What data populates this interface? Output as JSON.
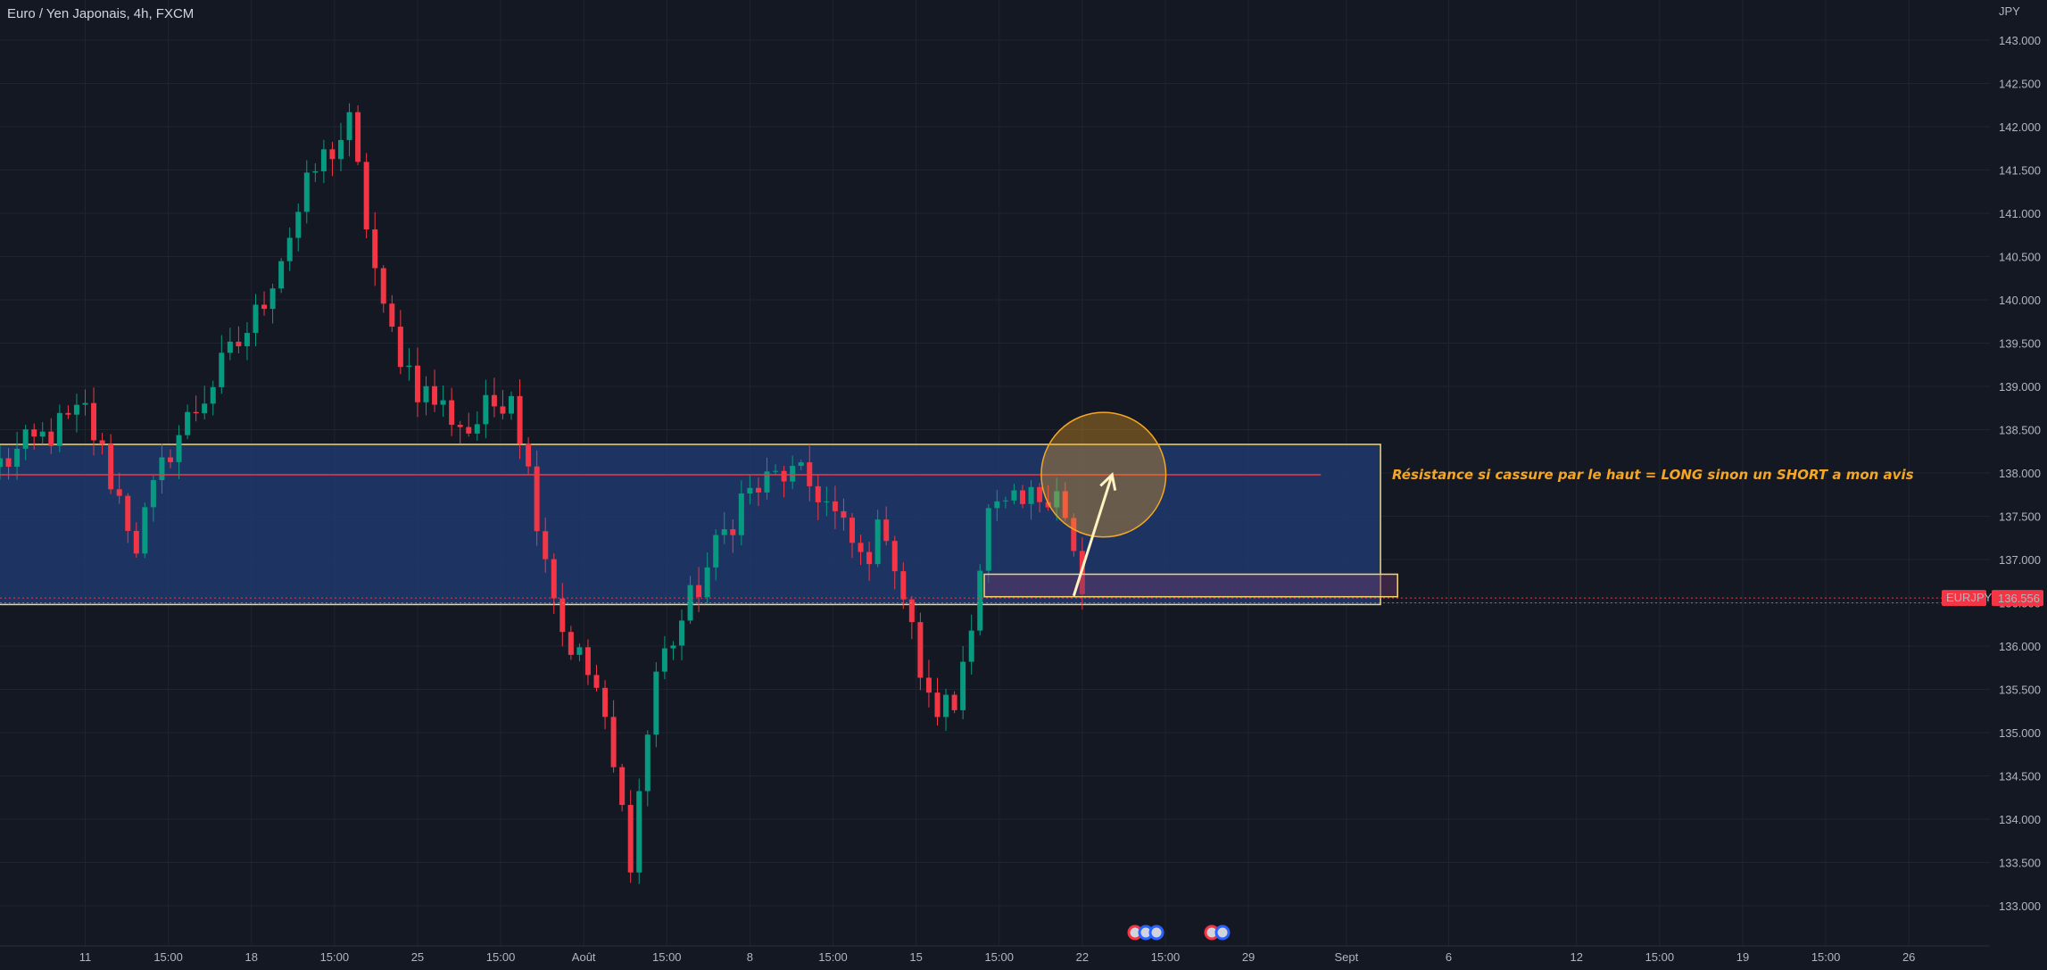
{
  "header": {
    "symbol_title": "Euro / Yen Japonais, 4h, FXCM"
  },
  "price_scale": {
    "currency": "JPY",
    "ticks": [
      "143.000",
      "142.500",
      "142.000",
      "141.500",
      "141.000",
      "140.500",
      "140.000",
      "139.500",
      "139.000",
      "138.500",
      "138.000",
      "137.500",
      "137.000",
      "136.500",
      "136.000",
      "135.500",
      "135.000",
      "134.500",
      "134.000",
      "133.500",
      "133.000"
    ]
  },
  "time_scale": {
    "ticks": [
      "11",
      "15:00",
      "18",
      "15:00",
      "25",
      "15:00",
      "Août",
      "15:00",
      "8",
      "15:00",
      "15",
      "15:00",
      "22",
      "15:00",
      "29",
      "Sept",
      "6",
      "12",
      "15:00",
      "19",
      "15:00",
      "26"
    ]
  },
  "last_price": {
    "symbol": "EURJPY",
    "value": "136.556",
    "color": "#f23645"
  },
  "annotation": {
    "text": "Résistance si cassure par le haut = LONG sinon un SHORT a mon avis",
    "color": "#f5a623"
  },
  "colors": {
    "background": "#141823",
    "up": "#089981",
    "down": "#f23645",
    "zone_fill": "#1e3a6e",
    "zone_border": "#f5d66a",
    "resistance_line": "#f23645",
    "circle": "#f5a623",
    "arrow": "#fff3c4"
  },
  "chart_data": {
    "type": "candlestick",
    "symbol": "EURJPY",
    "timeframe": "4h",
    "ylim": [
      132.7,
      143.2
    ],
    "xlim": [
      -1,
      236
    ],
    "x_ticks": [
      {
        "x": 10,
        "label": "11"
      },
      {
        "x": 19.75,
        "label": "15:00"
      },
      {
        "x": 29.5,
        "label": "18"
      },
      {
        "x": 39.25,
        "label": "15:00"
      },
      {
        "x": 49,
        "label": "25"
      },
      {
        "x": 58.75,
        "label": "15:00"
      },
      {
        "x": 68.5,
        "label": "Août"
      },
      {
        "x": 78.25,
        "label": "15:00"
      },
      {
        "x": 88,
        "label": "8"
      },
      {
        "x": 97.75,
        "label": "15:00"
      },
      {
        "x": 107.5,
        "label": "15"
      },
      {
        "x": 117.25,
        "label": "15:00"
      },
      {
        "x": 127,
        "label": "22"
      },
      {
        "x": 136.75,
        "label": "15:00"
      },
      {
        "x": 146.5,
        "label": "29"
      },
      {
        "x": 158,
        "label": "Sept"
      },
      {
        "x": 170,
        "label": "6"
      },
      {
        "x": 185,
        "label": "12"
      },
      {
        "x": 194.75,
        "label": "15:00"
      },
      {
        "x": 204.5,
        "label": "19"
      },
      {
        "x": 214.25,
        "label": "15:00"
      },
      {
        "x": 224,
        "label": "26"
      }
    ],
    "key_points": [
      {
        "x": 0,
        "close": 138.1
      },
      {
        "x": 10,
        "close": 138.7
      },
      {
        "x": 16,
        "close": 137.2
      },
      {
        "x": 20,
        "close": 138.3
      },
      {
        "x": 30,
        "close": 139.8
      },
      {
        "x": 37,
        "close": 141.5
      },
      {
        "x": 41,
        "close": 142.0
      },
      {
        "x": 45,
        "close": 139.8
      },
      {
        "x": 49,
        "close": 139.0
      },
      {
        "x": 55,
        "close": 138.5
      },
      {
        "x": 60,
        "close": 139.0
      },
      {
        "x": 62,
        "close": 138.0
      },
      {
        "x": 66,
        "close": 136.2
      },
      {
        "x": 70,
        "close": 135.5
      },
      {
        "x": 74,
        "close": 133.6
      },
      {
        "x": 77,
        "close": 135.7
      },
      {
        "x": 81,
        "close": 136.5
      },
      {
        "x": 87,
        "close": 137.7
      },
      {
        "x": 92,
        "close": 138.0
      },
      {
        "x": 96,
        "close": 137.8
      },
      {
        "x": 101,
        "close": 137.0
      },
      {
        "x": 104,
        "close": 137.4
      },
      {
        "x": 109,
        "close": 135.3
      },
      {
        "x": 112,
        "close": 135.3
      },
      {
        "x": 116,
        "close": 137.5
      },
      {
        "x": 120,
        "close": 137.6
      },
      {
        "x": 124,
        "close": 137.9
      },
      {
        "x": 127,
        "close": 136.6
      }
    ],
    "resistance_line": {
      "price": 137.98,
      "x_start": -1,
      "x_end": 155
    },
    "support_level": {
      "price": 136.53
    },
    "zones": [
      {
        "name": "range-zone",
        "x_start": -1,
        "x_end": 162,
        "y_low": 136.48,
        "y_high": 138.33
      },
      {
        "name": "support-box",
        "x_start": 115.5,
        "x_end": 164,
        "y_low": 136.57,
        "y_high": 136.83
      }
    ],
    "circle": {
      "x": 129.5,
      "price": 137.98,
      "radius_price": 0.72
    },
    "arrow": {
      "from": {
        "x": 126,
        "price": 136.58
      },
      "to": {
        "x": 130.5,
        "price": 137.98
      }
    }
  }
}
